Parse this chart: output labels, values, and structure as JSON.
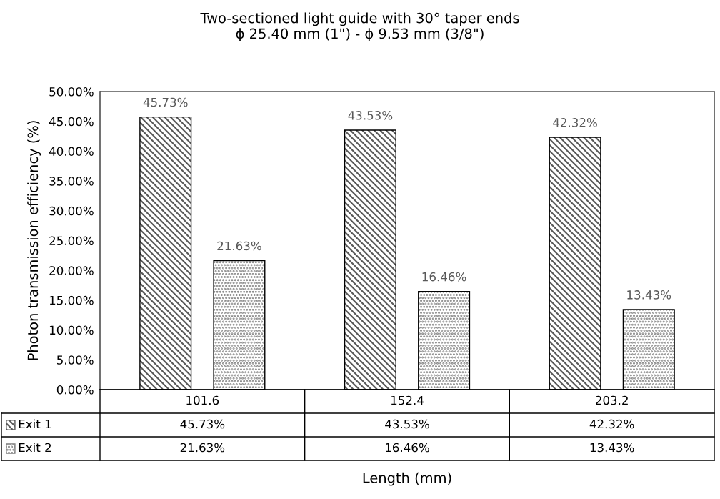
{
  "chart_data": {
    "type": "bar",
    "title": "Two-sectioned light guide with 30° taper ends\nϕ 25.40 mm (1\") - ϕ 9.53 mm (3/8\")",
    "xlabel": "Length (mm)",
    "ylabel": "Photon transmission efficiency (%)",
    "categories": [
      "101.6",
      "152.4",
      "203.2"
    ],
    "series": [
      {
        "name": "Exit 1",
        "color": "#595959",
        "values": [
          45.73,
          43.53,
          42.32
        ],
        "value_labels": [
          "45.73%",
          "43.53%",
          "42.32%"
        ]
      },
      {
        "name": "Exit 2",
        "color": "#7f7f7f",
        "values": [
          21.63,
          16.46,
          13.43
        ],
        "value_labels": [
          "21.63%",
          "16.46%",
          "13.43%"
        ]
      }
    ],
    "ylim": [
      0,
      50
    ],
    "yticks": [
      {
        "value": 0,
        "label": "0.00%"
      },
      {
        "value": 5,
        "label": "5.00%"
      },
      {
        "value": 10,
        "label": "10.00%"
      },
      {
        "value": 15,
        "label": "15.00%"
      },
      {
        "value": 20,
        "label": "20.00%"
      },
      {
        "value": 25,
        "label": "25.00%"
      },
      {
        "value": 30,
        "label": "30.00%"
      },
      {
        "value": 35,
        "label": "35.00%"
      },
      {
        "value": 40,
        "label": "40.00%"
      },
      {
        "value": 45,
        "label": "45.00%"
      },
      {
        "value": 50,
        "label": "50.00%"
      }
    ],
    "grid": false,
    "legend": "bottom"
  }
}
